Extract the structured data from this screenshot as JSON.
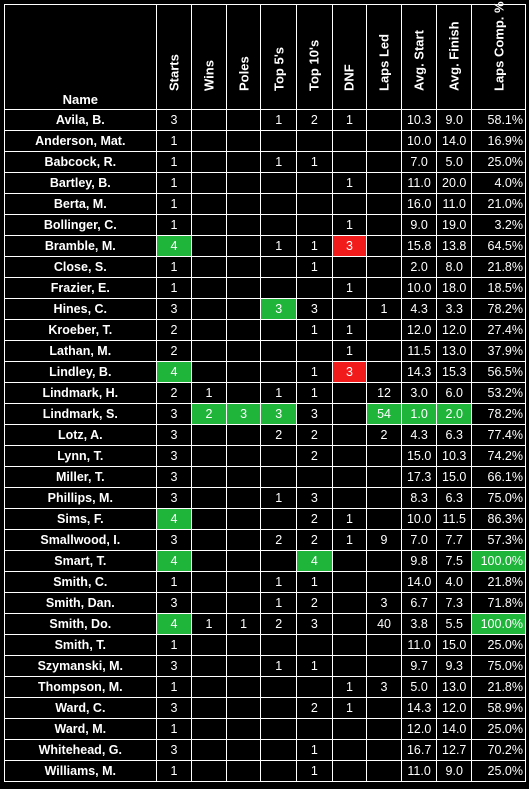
{
  "headers": [
    "Name",
    "Starts",
    "Wins",
    "Poles",
    "Top 5's",
    "Top 10's",
    "DNF",
    "Laps Led",
    "Avg. Start",
    "Avg. Finish",
    "Laps Comp. %"
  ],
  "highlight_colors": {
    "green": "#1fb53b",
    "red": "#f21b1b"
  },
  "rows": [
    {
      "name": "Avila, B.",
      "cells": [
        "3",
        "",
        "",
        "1",
        "2",
        "1",
        "",
        "10.3",
        "9.0",
        "58.1%"
      ],
      "hl": {}
    },
    {
      "name": "Anderson, Mat.",
      "cells": [
        "1",
        "",
        "",
        "",
        "",
        "",
        "",
        "10.0",
        "14.0",
        "16.9%"
      ],
      "hl": {}
    },
    {
      "name": "Babcock, R.",
      "cells": [
        "1",
        "",
        "",
        "1",
        "1",
        "",
        "",
        "7.0",
        "5.0",
        "25.0%"
      ],
      "hl": {}
    },
    {
      "name": "Bartley, B.",
      "cells": [
        "1",
        "",
        "",
        "",
        "",
        "1",
        "",
        "11.0",
        "20.0",
        "4.0%"
      ],
      "hl": {}
    },
    {
      "name": "Berta, M.",
      "cells": [
        "1",
        "",
        "",
        "",
        "",
        "",
        "",
        "16.0",
        "11.0",
        "21.0%"
      ],
      "hl": {}
    },
    {
      "name": "Bollinger, C.",
      "cells": [
        "1",
        "",
        "",
        "",
        "",
        "1",
        "",
        "9.0",
        "19.0",
        "3.2%"
      ],
      "hl": {}
    },
    {
      "name": "Bramble, M.",
      "cells": [
        "4",
        "",
        "",
        "1",
        "1",
        "3",
        "",
        "15.8",
        "13.8",
        "64.5%"
      ],
      "hl": {
        "0": "green",
        "5": "red"
      }
    },
    {
      "name": "Close, S.",
      "cells": [
        "1",
        "",
        "",
        "",
        "1",
        "",
        "",
        "2.0",
        "8.0",
        "21.8%"
      ],
      "hl": {}
    },
    {
      "name": "Frazier, E.",
      "cells": [
        "1",
        "",
        "",
        "",
        "",
        "1",
        "",
        "10.0",
        "18.0",
        "18.5%"
      ],
      "hl": {}
    },
    {
      "name": "Hines, C.",
      "cells": [
        "3",
        "",
        "",
        "3",
        "3",
        "",
        "1",
        "4.3",
        "3.3",
        "78.2%"
      ],
      "hl": {
        "3": "green"
      }
    },
    {
      "name": "Kroeber, T.",
      "cells": [
        "2",
        "",
        "",
        "",
        "1",
        "1",
        "",
        "12.0",
        "12.0",
        "27.4%"
      ],
      "hl": {}
    },
    {
      "name": "Lathan, M.",
      "cells": [
        "2",
        "",
        "",
        "",
        "",
        "1",
        "",
        "11.5",
        "13.0",
        "37.9%"
      ],
      "hl": {}
    },
    {
      "name": "Lindley, B.",
      "cells": [
        "4",
        "",
        "",
        "",
        "1",
        "3",
        "",
        "14.3",
        "15.3",
        "56.5%"
      ],
      "hl": {
        "0": "green",
        "5": "red"
      }
    },
    {
      "name": "Lindmark, H.",
      "cells": [
        "2",
        "1",
        "",
        "1",
        "1",
        "",
        "12",
        "3.0",
        "6.0",
        "53.2%"
      ],
      "hl": {}
    },
    {
      "name": "Lindmark, S.",
      "cells": [
        "3",
        "2",
        "3",
        "3",
        "3",
        "",
        "54",
        "1.0",
        "2.0",
        "78.2%"
      ],
      "hl": {
        "1": "green",
        "2": "green",
        "3": "green",
        "6": "green",
        "7": "green",
        "8": "green"
      }
    },
    {
      "name": "Lotz, A.",
      "cells": [
        "3",
        "",
        "",
        "2",
        "2",
        "",
        "2",
        "4.3",
        "6.3",
        "77.4%"
      ],
      "hl": {}
    },
    {
      "name": "Lynn, T.",
      "cells": [
        "3",
        "",
        "",
        "",
        "2",
        "",
        "",
        "15.0",
        "10.3",
        "74.2%"
      ],
      "hl": {}
    },
    {
      "name": "Miller, T.",
      "cells": [
        "3",
        "",
        "",
        "",
        "",
        "",
        "",
        "17.3",
        "15.0",
        "66.1%"
      ],
      "hl": {}
    },
    {
      "name": "Phillips, M.",
      "cells": [
        "3",
        "",
        "",
        "1",
        "3",
        "",
        "",
        "8.3",
        "6.3",
        "75.0%"
      ],
      "hl": {}
    },
    {
      "name": "Sims, F.",
      "cells": [
        "4",
        "",
        "",
        "",
        "2",
        "1",
        "",
        "10.0",
        "11.5",
        "86.3%"
      ],
      "hl": {
        "0": "green"
      }
    },
    {
      "name": "Smallwood, I.",
      "cells": [
        "3",
        "",
        "",
        "2",
        "2",
        "1",
        "9",
        "7.0",
        "7.7",
        "57.3%"
      ],
      "hl": {}
    },
    {
      "name": "Smart, T.",
      "cells": [
        "4",
        "",
        "",
        "",
        "4",
        "",
        "",
        "9.8",
        "7.5",
        "100.0%"
      ],
      "hl": {
        "0": "green",
        "4": "green",
        "9": "green"
      }
    },
    {
      "name": "Smith, C.",
      "cells": [
        "1",
        "",
        "",
        "1",
        "1",
        "",
        "",
        "14.0",
        "4.0",
        "21.8%"
      ],
      "hl": {}
    },
    {
      "name": "Smith, Dan.",
      "cells": [
        "3",
        "",
        "",
        "1",
        "2",
        "",
        "3",
        "6.7",
        "7.3",
        "71.8%"
      ],
      "hl": {}
    },
    {
      "name": "Smith, Do.",
      "cells": [
        "4",
        "1",
        "1",
        "2",
        "3",
        "",
        "40",
        "3.8",
        "5.5",
        "100.0%"
      ],
      "hl": {
        "0": "green",
        "9": "green"
      }
    },
    {
      "name": "Smith, T.",
      "cells": [
        "1",
        "",
        "",
        "",
        "",
        "",
        "",
        "11.0",
        "15.0",
        "25.0%"
      ],
      "hl": {}
    },
    {
      "name": "Szymanski, M.",
      "cells": [
        "3",
        "",
        "",
        "1",
        "1",
        "",
        "",
        "9.7",
        "9.3",
        "75.0%"
      ],
      "hl": {}
    },
    {
      "name": "Thompson, M.",
      "cells": [
        "1",
        "",
        "",
        "",
        "",
        "1",
        "3",
        "5.0",
        "13.0",
        "21.8%"
      ],
      "hl": {}
    },
    {
      "name": "Ward, C.",
      "cells": [
        "3",
        "",
        "",
        "",
        "2",
        "1",
        "",
        "14.3",
        "12.0",
        "58.9%"
      ],
      "hl": {}
    },
    {
      "name": "Ward, M.",
      "cells": [
        "1",
        "",
        "",
        "",
        "",
        "",
        "",
        "12.0",
        "14.0",
        "25.0%"
      ],
      "hl": {}
    },
    {
      "name": "Whitehead, G.",
      "cells": [
        "3",
        "",
        "",
        "",
        "1",
        "",
        "",
        "16.7",
        "12.7",
        "70.2%"
      ],
      "hl": {}
    },
    {
      "name": "Williams, M.",
      "cells": [
        "1",
        "",
        "",
        "",
        "1",
        "",
        "",
        "11.0",
        "9.0",
        "25.0%"
      ],
      "hl": {}
    }
  ]
}
